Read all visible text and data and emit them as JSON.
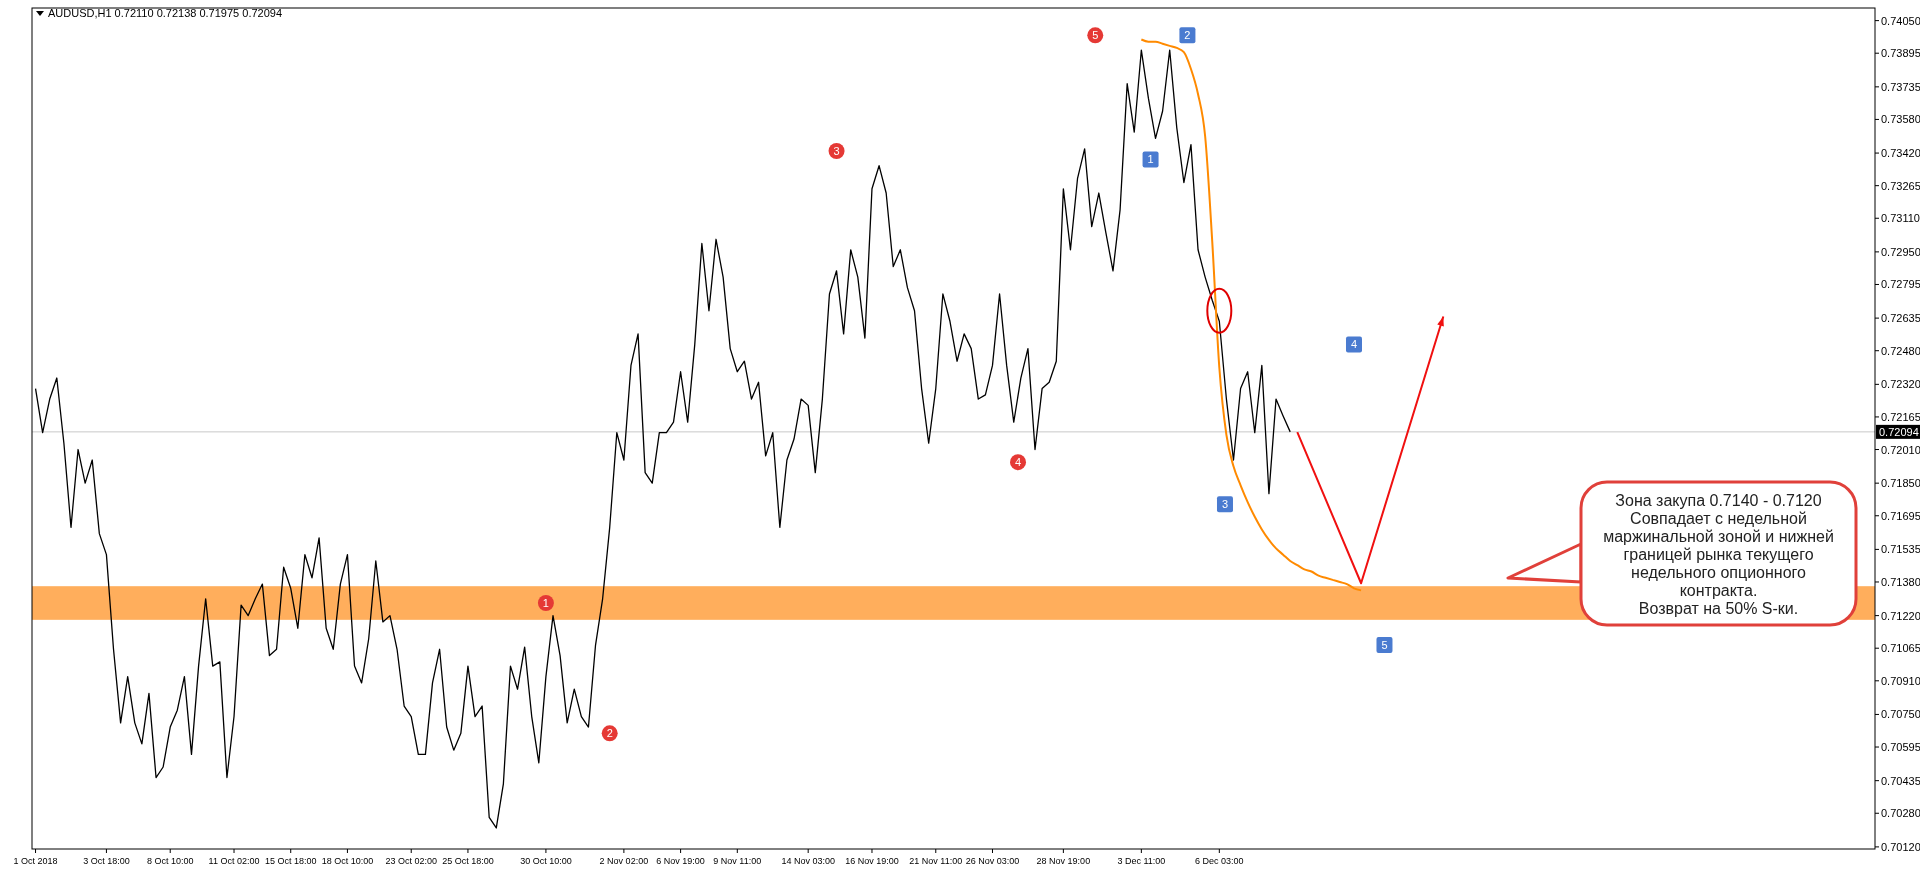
{
  "chart_data": {
    "type": "line",
    "title": "AUDUSD,H1  0.72110 0.72138 0.71975 0.72094",
    "ylim": [
      0.7011,
      0.7411
    ],
    "yticks": [
      {
        "value": 0.7405,
        "label": "0.74050"
      },
      {
        "value": 0.73895,
        "label": "0.73895"
      },
      {
        "value": 0.73735,
        "label": "0.73735"
      },
      {
        "value": 0.7358,
        "label": "0.73580"
      },
      {
        "value": 0.7342,
        "label": "0.73420"
      },
      {
        "value": 0.73265,
        "label": "0.73265"
      },
      {
        "value": 0.7311,
        "label": "0.73110"
      },
      {
        "value": 0.7295,
        "label": "0.72950"
      },
      {
        "value": 0.72795,
        "label": "0.72795"
      },
      {
        "value": 0.72635,
        "label": "0.72635"
      },
      {
        "value": 0.7248,
        "label": "0.72480"
      },
      {
        "value": 0.7232,
        "label": "0.72320"
      },
      {
        "value": 0.72165,
        "label": "0.72165"
      },
      {
        "value": 0.7201,
        "label": "0.72010"
      },
      {
        "value": 0.7185,
        "label": "0.71850"
      },
      {
        "value": 0.71695,
        "label": "0.71695"
      },
      {
        "value": 0.71535,
        "label": "0.71535"
      },
      {
        "value": 0.7138,
        "label": "0.71380"
      },
      {
        "value": 0.7122,
        "label": "0.71220"
      },
      {
        "value": 0.71065,
        "label": "0.71065"
      },
      {
        "value": 0.7091,
        "label": "0.70910"
      },
      {
        "value": 0.7075,
        "label": "0.70750"
      },
      {
        "value": 0.70595,
        "label": "0.70595"
      },
      {
        "value": 0.70435,
        "label": "0.70435"
      },
      {
        "value": 0.7028,
        "label": "0.70280"
      },
      {
        "value": 0.7012,
        "label": "0.70120"
      }
    ],
    "categories": [
      "1 Oct 2018",
      null,
      null,
      null,
      null,
      null,
      null,
      null,
      null,
      null,
      "3 Oct 18:00",
      null,
      null,
      null,
      null,
      null,
      null,
      null,
      null,
      "8 Oct 10:00",
      null,
      null,
      null,
      null,
      null,
      null,
      null,
      null,
      "11 Oct 02:00",
      null,
      null,
      null,
      null,
      null,
      null,
      null,
      "15 Oct 18:00",
      null,
      null,
      null,
      null,
      null,
      null,
      null,
      "18 Oct 10:00",
      null,
      null,
      null,
      null,
      null,
      null,
      null,
      null,
      "23 Oct 02:00",
      null,
      null,
      null,
      null,
      null,
      null,
      null,
      "25 Oct 18:00",
      null,
      null,
      null,
      null,
      null,
      null,
      null,
      null,
      null,
      null,
      "30 Oct 10:00",
      null,
      null,
      null,
      null,
      null,
      null,
      null,
      null,
      null,
      null,
      "2 Nov 02:00",
      null,
      null,
      null,
      null,
      null,
      null,
      null,
      "6 Nov 19:00",
      null,
      null,
      null,
      null,
      null,
      null,
      null,
      "9 Nov 11:00",
      null,
      null,
      null,
      null,
      null,
      null,
      null,
      null,
      null,
      "14 Nov 03:00",
      null,
      null,
      null,
      null,
      null,
      null,
      null,
      null,
      "16 Nov 19:00",
      null,
      null,
      null,
      null,
      null,
      null,
      null,
      null,
      "21 Nov 11:00",
      null,
      null,
      null,
      null,
      null,
      null,
      null,
      "26 Nov 03:00",
      null,
      null,
      null,
      null,
      null,
      null,
      null,
      null,
      null,
      "28 Nov 19:00",
      null,
      null,
      null,
      null,
      null,
      null,
      null,
      null,
      null,
      null,
      "3 Dec 11:00",
      null,
      null,
      null,
      null,
      null,
      null,
      null,
      null,
      null,
      null,
      "6 Dec 03:00",
      null,
      null,
      null,
      null,
      null,
      null,
      null,
      null,
      null,
      null,
      null,
      null,
      null,
      null,
      null,
      null,
      null,
      null,
      null,
      null,
      null,
      null,
      null,
      null,
      null,
      null,
      null,
      null,
      null,
      null,
      null,
      null,
      null,
      null,
      null,
      null,
      null,
      null,
      null,
      null,
      null,
      null,
      null,
      null,
      null,
      null,
      null,
      null,
      null,
      null,
      null,
      null,
      null,
      null,
      null,
      null,
      null,
      null,
      null,
      null,
      null,
      null,
      null,
      null,
      null,
      null,
      null,
      null,
      null,
      null,
      null,
      null,
      null,
      null,
      null,
      null,
      null,
      null,
      null,
      null,
      null,
      null,
      null,
      null,
      null,
      null,
      null,
      null,
      null,
      null,
      null,
      null
    ],
    "series": [
      {
        "color": "#000000",
        "values": [
          0.723,
          0.7209,
          0.7225,
          0.7235,
          0.7204,
          0.7164,
          0.7201,
          0.7185,
          0.7196,
          0.7161,
          0.7151,
          0.7106,
          0.7071,
          0.7093,
          0.7071,
          0.7061,
          0.7085,
          0.7045,
          0.705,
          0.7069,
          0.7077,
          0.7093,
          0.7056,
          0.7098,
          0.713,
          0.7098,
          0.71,
          0.7045,
          0.7074,
          0.7127,
          0.7122,
          0.713,
          0.7137,
          0.7103,
          0.7106,
          0.7145,
          0.7135,
          0.7116,
          0.7151,
          0.714,
          0.7159,
          0.7116,
          0.7106,
          0.7137,
          0.7151,
          0.7098,
          0.709,
          0.7111,
          0.7148,
          0.7119,
          0.7122,
          0.7106,
          0.7079,
          0.7074,
          0.7056,
          0.7056,
          0.709,
          0.7106,
          0.7069,
          0.7058,
          0.7066,
          0.7098,
          0.7074,
          0.7079,
          0.7026,
          0.7021,
          0.7042,
          0.7098,
          0.7087,
          0.7107,
          0.7074,
          0.7052,
          0.7093,
          0.7122,
          0.7103,
          0.7071,
          0.7087,
          0.7074,
          0.7069,
          0.7108,
          0.713,
          0.7164,
          0.7209,
          0.7196,
          0.7241,
          0.7256,
          0.719,
          0.7185,
          0.7209,
          0.7209,
          0.7214,
          0.7238,
          0.7214,
          0.7251,
          0.7299,
          0.7267,
          0.7301,
          0.7283,
          0.7249,
          0.7238,
          0.7243,
          0.7225,
          0.7233,
          0.7198,
          0.7209,
          0.7164,
          0.7196,
          0.7206,
          0.7225,
          0.7222,
          0.719,
          0.7225,
          0.7275,
          0.7286,
          0.7256,
          0.7296,
          0.7283,
          0.7254,
          0.7325,
          0.7336,
          0.7323,
          0.7288,
          0.7296,
          0.7278,
          0.7267,
          0.723,
          0.7204,
          0.723,
          0.7275,
          0.7262,
          0.7243,
          0.7256,
          0.7249,
          0.7225,
          0.7227,
          0.7241,
          0.7275,
          0.7241,
          0.7214,
          0.7235,
          0.7249,
          0.7201,
          0.723,
          0.7233,
          0.7243,
          0.7325,
          0.7296,
          0.733,
          0.7344,
          0.7307,
          0.7323,
          0.7304,
          0.7286,
          0.7315,
          0.7375,
          0.7352,
          0.7391,
          0.7368,
          0.7349,
          0.7362,
          0.7391,
          0.7354,
          0.7328,
          0.7346,
          0.7296,
          0.7283,
          0.7272,
          0.7262,
          0.7225,
          0.7196,
          0.723,
          0.7238,
          0.7209,
          0.7241,
          0.718,
          0.7225,
          0.7217,
          0.72094,
          null,
          null,
          null,
          null,
          null,
          null,
          null,
          null,
          null,
          null,
          null,
          null,
          null,
          null,
          null,
          null,
          null,
          null,
          null,
          null,
          null,
          null,
          null,
          null,
          null,
          null,
          null,
          null,
          null,
          null,
          null,
          null,
          null,
          null,
          null,
          null,
          null,
          null,
          null,
          null,
          null,
          null,
          null,
          null,
          null,
          null,
          null,
          null,
          null,
          null,
          null,
          null,
          null,
          null,
          null,
          null,
          null,
          null,
          null,
          null,
          null,
          null,
          null,
          null,
          null,
          null,
          null,
          null,
          null,
          null,
          null,
          null,
          null,
          null,
          null,
          null,
          null,
          null,
          null,
          null,
          null,
          null
        ]
      },
      {
        "color": "#ff8a00",
        "values": [
          null,
          null,
          null,
          null,
          null,
          null,
          null,
          null,
          null,
          null,
          null,
          null,
          null,
          null,
          null,
          null,
          null,
          null,
          null,
          null,
          null,
          null,
          null,
          null,
          null,
          null,
          null,
          null,
          null,
          null,
          null,
          null,
          null,
          null,
          null,
          null,
          null,
          null,
          null,
          null,
          null,
          null,
          null,
          null,
          null,
          null,
          null,
          null,
          null,
          null,
          null,
          null,
          null,
          null,
          null,
          null,
          null,
          null,
          null,
          null,
          null,
          null,
          null,
          null,
          null,
          null,
          null,
          null,
          null,
          null,
          null,
          null,
          null,
          null,
          null,
          null,
          null,
          null,
          null,
          null,
          null,
          null,
          null,
          null,
          null,
          null,
          null,
          null,
          null,
          null,
          null,
          null,
          null,
          null,
          null,
          null,
          null,
          null,
          null,
          null,
          null,
          null,
          null,
          null,
          null,
          null,
          null,
          null,
          null,
          null,
          null,
          null,
          null,
          null,
          null,
          null,
          null,
          null,
          null,
          null,
          null,
          null,
          null,
          null,
          null,
          null,
          null,
          null,
          null,
          null,
          null,
          null,
          null,
          null,
          null,
          null,
          null,
          null,
          null,
          null,
          null,
          null,
          null,
          null,
          null,
          null,
          null,
          null,
          null,
          null,
          null,
          null,
          null,
          null,
          null,
          null,
          0.7396,
          0.7395,
          0.7395,
          0.7394,
          0.7393,
          0.7392,
          0.739,
          0.7382,
          0.737,
          0.735,
          0.73,
          0.724,
          0.7208,
          0.7193,
          0.7184,
          0.7176,
          0.7169,
          0.7163,
          0.7158,
          0.7154,
          0.7151,
          0.7148,
          0.7146,
          0.7144,
          0.7143,
          0.7141,
          0.714,
          0.7139,
          0.7138,
          0.7137,
          0.7135,
          0.7134,
          null,
          null,
          null,
          null,
          null,
          null,
          null,
          null,
          null,
          null,
          null,
          null,
          null,
          null,
          null,
          null,
          null,
          null,
          null,
          null,
          null,
          null,
          null,
          null,
          null,
          null,
          null,
          null,
          null,
          null,
          null,
          null,
          null,
          null,
          null,
          null,
          null,
          null,
          null,
          null,
          null,
          null,
          null,
          null,
          null,
          null,
          null,
          null,
          null,
          null,
          null,
          null,
          null,
          null,
          null,
          null,
          null,
          null,
          null,
          null,
          null,
          null,
          null,
          null,
          null,
          null,
          null,
          null,
          null,
          null,
          null,
          null
        ]
      }
    ],
    "bands": [
      {
        "axis": "y",
        "from": 0.712,
        "to": 0.7136,
        "color": "#ffa040"
      }
    ],
    "ref_lines": [
      {
        "axis": "y",
        "value": 0.72094,
        "label": "0.72094",
        "color": "#c8c8c8"
      }
    ],
    "annotations": [
      "1",
      "2",
      "3",
      "4",
      "5",
      "1",
      "2",
      "3",
      "4",
      "5",
      "Зона закупа 0.7140 - 0.7120\nСовпадает с недельной\nмаржинальной зоной и нижней\nграницей рынка текущего\nнедельного опционного\nконтракта.\nВозврат на 50% S-ки."
    ]
  }
}
